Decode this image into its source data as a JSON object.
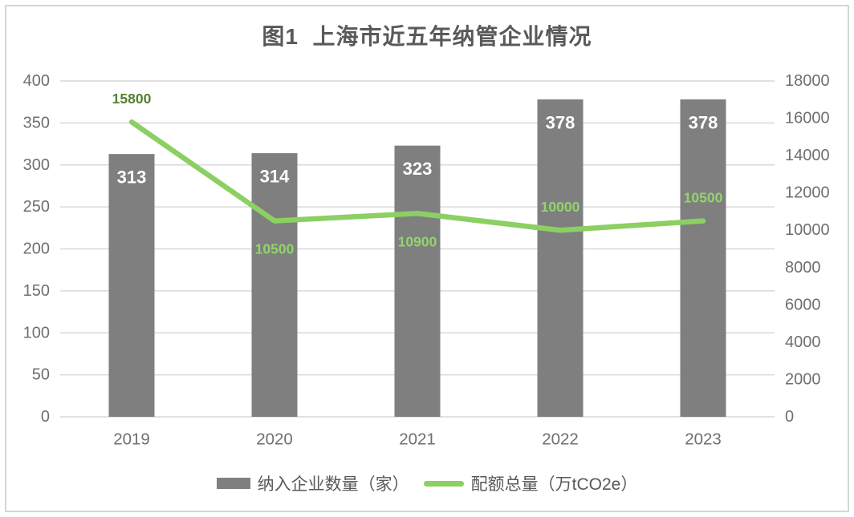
{
  "chart_data": {
    "type": "combo",
    "title": "图1  上海市近五年纳管企业情况",
    "categories": [
      "2019",
      "2020",
      "2021",
      "2022",
      "2023"
    ],
    "series": [
      {
        "name": "纳入企业数量（家）",
        "type": "bar",
        "axis": "left",
        "values": [
          313,
          314,
          323,
          378,
          378
        ],
        "color": "#7f7f7f",
        "data_label_color": "#ffffff"
      },
      {
        "name": "配额总量（万tCO2e）",
        "type": "line",
        "axis": "right",
        "values": [
          15800,
          10500,
          10900,
          10000,
          10500
        ],
        "color": "#8ccf63",
        "data_labels": [
          {
            "text": "15800",
            "position": "above",
            "color": "#538135"
          },
          {
            "text": "10500",
            "position": "below",
            "color": "#92d46c"
          },
          {
            "text": "10900",
            "position": "below",
            "color": "#92d46c"
          },
          {
            "text": "10000",
            "position": "above",
            "color": "#92d46c"
          },
          {
            "text": "10500",
            "position": "above",
            "color": "#92d46c"
          }
        ]
      }
    ],
    "left_axis": {
      "min": 0,
      "max": 400,
      "step": 50,
      "ticks": [
        "0",
        "50",
        "100",
        "150",
        "200",
        "250",
        "300",
        "350",
        "400"
      ]
    },
    "right_axis": {
      "min": 0,
      "max": 18000,
      "step": 2000,
      "ticks": [
        "0",
        "2000",
        "4000",
        "6000",
        "8000",
        "10000",
        "12000",
        "14000",
        "16000",
        "18000"
      ]
    },
    "grid": true,
    "legend_position": "bottom",
    "colors": {
      "grid": "#d9d9d9",
      "tick_text": "#6f6f6f",
      "category_text": "#6f6f6f",
      "title_text": "#595959",
      "legend_text": "#595959",
      "frame_border": "#d6d6d6"
    }
  }
}
